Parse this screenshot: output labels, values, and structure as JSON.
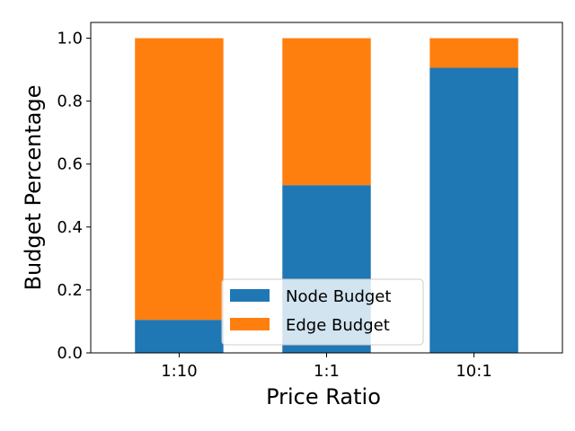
{
  "chart_data": {
    "type": "bar",
    "stacked": true,
    "categories": [
      "1:10",
      "1:1",
      "10:1"
    ],
    "series": [
      {
        "name": "Node Budget",
        "values": [
          0.105,
          0.533,
          0.906
        ],
        "color": "#1f77b4"
      },
      {
        "name": "Edge Budget",
        "values": [
          0.895,
          0.467,
          0.094
        ],
        "color": "#ff7f0e"
      }
    ],
    "xlabel": "Price Ratio",
    "ylabel": "Budget Percentage",
    "ylim": [
      0,
      1.05
    ],
    "yticks": [
      "0.0",
      "0.2",
      "0.4",
      "0.6",
      "0.8",
      "1.0"
    ],
    "grid": false,
    "legend_position": "bottom-center"
  }
}
